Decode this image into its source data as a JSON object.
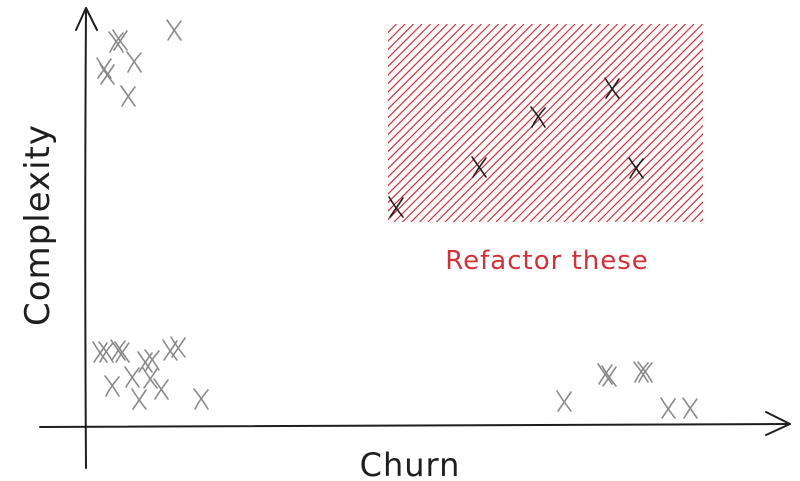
{
  "axes": {
    "x_label": "Churn",
    "y_label": "Complexity"
  },
  "zone": {
    "label": "Refactor these",
    "color": "#d0323a"
  },
  "colors": {
    "axis": "#1e1e1e",
    "point": "#8a8a8a",
    "highlight_point": "#1e1e1e"
  },
  "points": {
    "high_complexity_low_churn": 7,
    "low_complexity_low_churn": 14,
    "low_complexity_high_churn": 7,
    "in_refactor_zone": 5
  }
}
